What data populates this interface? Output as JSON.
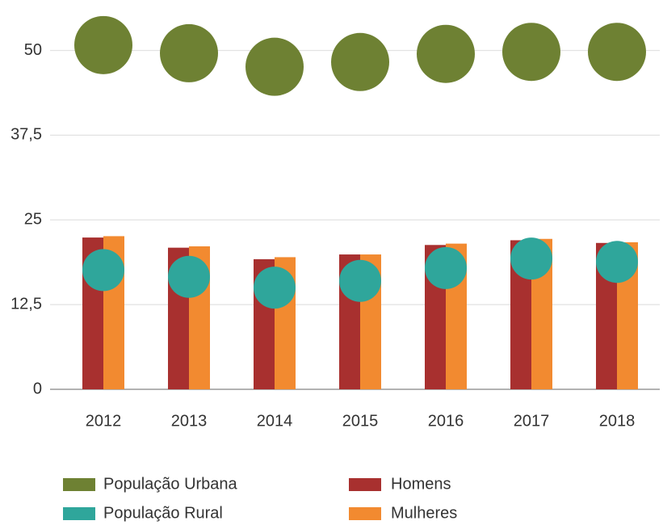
{
  "chart_data": {
    "type": "bar",
    "categories": [
      "2012",
      "2013",
      "2014",
      "2015",
      "2016",
      "2017",
      "2018"
    ],
    "series": [
      {
        "name": "População Urbana",
        "type": "scatter",
        "color": "#6e8133",
        "values": [
          50.8,
          49.6,
          47.6,
          48.3,
          49.5,
          49.8,
          49.8
        ]
      },
      {
        "name": "População Rural",
        "type": "scatter",
        "color": "#2fa69b",
        "values": [
          17.6,
          16.6,
          15.0,
          16.0,
          17.9,
          19.3,
          18.8
        ]
      },
      {
        "name": "Homens",
        "type": "bar",
        "color": "#a8302f",
        "values": [
          22.4,
          20.9,
          19.2,
          19.9,
          21.3,
          22.0,
          21.6
        ]
      },
      {
        "name": "Mulheres",
        "type": "bar",
        "color": "#f28a30",
        "values": [
          22.6,
          21.1,
          19.5,
          19.9,
          21.5,
          22.2,
          21.7
        ]
      }
    ],
    "ylim": [
      0,
      56.5
    ],
    "yticks": [
      0,
      {
        "value": 12.5,
        "label": "12,5"
      },
      25,
      {
        "value": 37.5,
        "label": "37,5"
      },
      50
    ],
    "grid": true
  }
}
